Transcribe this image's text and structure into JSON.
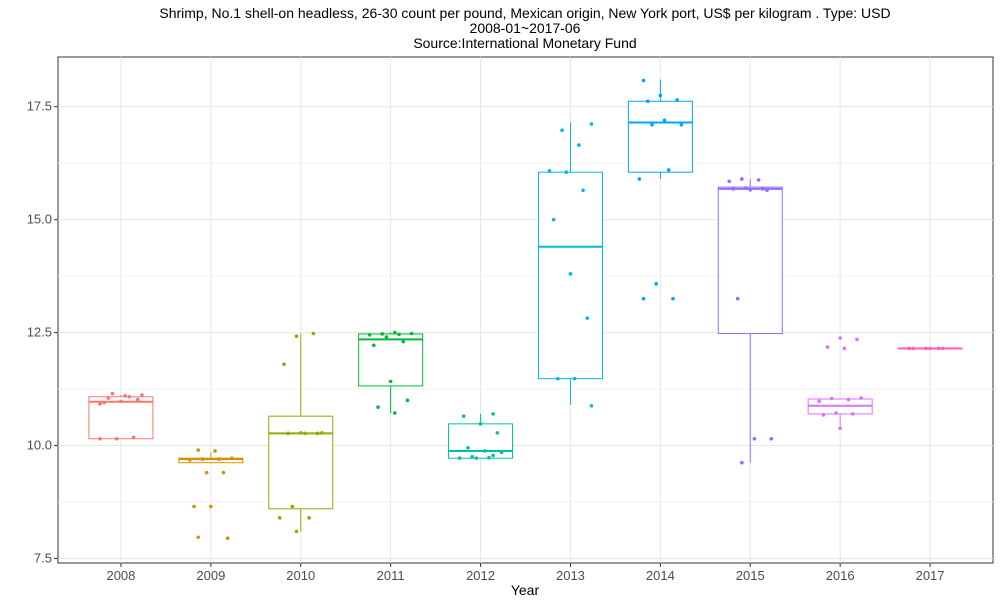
{
  "chart_data": {
    "type": "box",
    "title": "Shrimp, No.1 shell-on headless, 26-30 count per pound, Mexican origin, New York port, US$ per kilogram  . Type: USD",
    "subtitle": "2008-01~2017-06",
    "source": "Source:International Monetary Fund",
    "xlabel": "Year",
    "ylabel": "",
    "categories": [
      "2008",
      "2009",
      "2010",
      "2011",
      "2012",
      "2013",
      "2014",
      "2015",
      "2016",
      "2017"
    ],
    "yticks": [
      7.5,
      10.0,
      12.5,
      15.0,
      17.5
    ],
    "ytick_labels": [
      "7.5",
      "10.0",
      "12.5",
      "15.0",
      "17.5"
    ],
    "ylim": [
      7.4,
      18.6
    ],
    "grid": true,
    "legend": "none",
    "colors": [
      "#F8766D",
      "#D39200",
      "#93AA00",
      "#00BA38",
      "#00C19F",
      "#00B9E3",
      "#00A5FF",
      "#936DFF",
      "#DB72FB",
      "#FF61C3"
    ],
    "boxes": [
      {
        "q1": 10.15,
        "median": 10.97,
        "q3": 11.08,
        "low": 10.15,
        "high": 11.12,
        "points": [
          10.15,
          10.15,
          10.18,
          10.95,
          10.98,
          11.02,
          11.05,
          11.1,
          11.12,
          11.15,
          11.08,
          10.92
        ]
      },
      {
        "q1": 9.62,
        "median": 9.7,
        "q3": 9.72,
        "low": 9.62,
        "high": 9.85,
        "points": [
          9.9,
          9.88,
          9.72,
          9.7,
          9.7,
          9.68,
          9.4,
          9.4,
          8.65,
          8.65,
          7.95,
          7.97
        ]
      },
      {
        "q1": 8.6,
        "median": 10.27,
        "q3": 10.65,
        "low": 8.1,
        "high": 12.48,
        "points": [
          12.42,
          12.48,
          11.8,
          10.28,
          10.27,
          10.27,
          10.27,
          10.28,
          8.65,
          8.4,
          8.4,
          8.1
        ]
      },
      {
        "q1": 11.32,
        "median": 12.35,
        "q3": 12.47,
        "low": 10.72,
        "high": 12.5,
        "points": [
          12.5,
          12.48,
          12.47,
          12.46,
          12.45,
          12.4,
          12.3,
          12.22,
          11.42,
          11.0,
          10.85,
          10.72
        ]
      },
      {
        "q1": 9.72,
        "median": 9.88,
        "q3": 10.48,
        "low": 9.72,
        "high": 10.7,
        "points": [
          10.7,
          10.65,
          10.48,
          10.28,
          9.95,
          9.88,
          9.85,
          9.75,
          9.73,
          9.72,
          9.72,
          9.78
        ]
      },
      {
        "q1": 11.48,
        "median": 14.4,
        "q3": 16.05,
        "low": 10.9,
        "high": 17.15,
        "points": [
          17.12,
          16.98,
          16.65,
          16.08,
          16.05,
          15.65,
          15.0,
          13.8,
          12.82,
          11.48,
          11.48,
          10.88
        ]
      },
      {
        "q1": 16.05,
        "median": 17.15,
        "q3": 17.62,
        "low": 15.9,
        "high": 18.1,
        "points": [
          18.08,
          17.75,
          17.65,
          17.62,
          17.2,
          17.1,
          17.1,
          16.1,
          15.9,
          13.58,
          13.25,
          13.25
        ]
      },
      {
        "q1": 12.48,
        "median": 15.68,
        "q3": 15.72,
        "low": 9.62,
        "high": 15.9,
        "points": [
          15.9,
          15.88,
          15.85,
          15.7,
          15.68,
          15.68,
          15.66,
          15.65,
          13.25,
          10.15,
          10.15,
          9.62
        ]
      },
      {
        "q1": 10.7,
        "median": 10.88,
        "q3": 11.03,
        "low": 10.4,
        "high": 11.05,
        "points": [
          12.38,
          12.35,
          12.18,
          12.15,
          11.05,
          11.04,
          11.02,
          10.98,
          10.72,
          10.7,
          10.68,
          10.38
        ]
      },
      {
        "q1": 12.15,
        "median": 12.15,
        "q3": 12.15,
        "low": 12.15,
        "high": 12.15,
        "points": [
          12.15,
          12.15,
          12.15,
          12.15,
          12.15,
          12.15
        ]
      }
    ]
  }
}
